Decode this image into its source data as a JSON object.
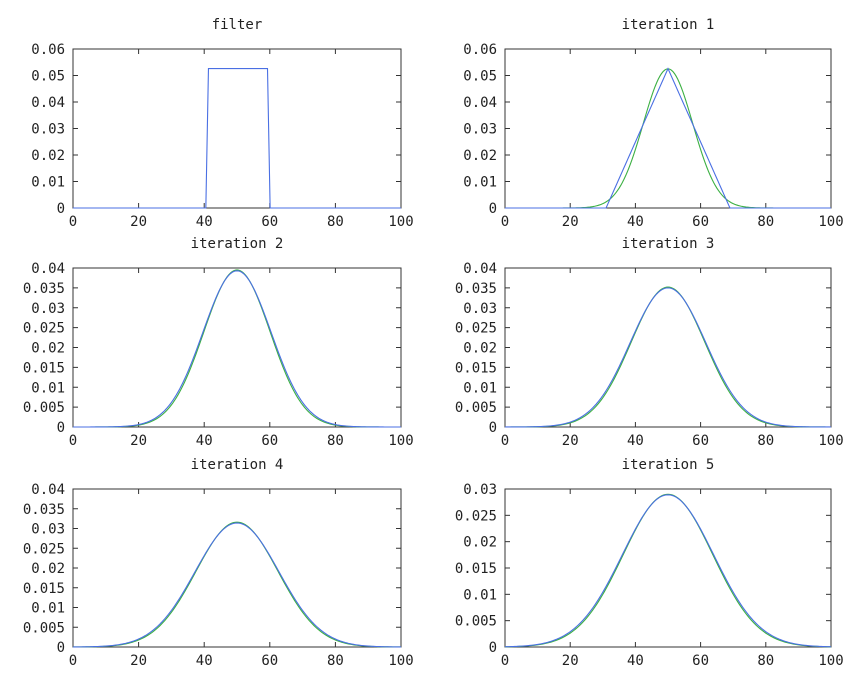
{
  "chart_data": [
    {
      "type": "line",
      "title": "filter",
      "xlim": [
        0,
        100
      ],
      "ylim": [
        0,
        0.06
      ],
      "xticks": [
        "0",
        "20",
        "40",
        "60",
        "80",
        "100"
      ],
      "yticks": [
        "0",
        "0.01",
        "0.02",
        "0.03",
        "0.04",
        "0.05",
        "0.06"
      ],
      "grid": false,
      "series": [
        {
          "color": "#4a6fe3",
          "shape": "box",
          "x": [
            0,
            40.5,
            41.3,
            59.3,
            60.1,
            100
          ],
          "y": [
            0,
            0,
            0.0526,
            0.0526,
            0,
            0
          ]
        }
      ]
    },
    {
      "type": "line",
      "title": "iteration 1",
      "xlim": [
        0,
        100
      ],
      "ylim": [
        0,
        0.06
      ],
      "xticks": [
        "0",
        "20",
        "40",
        "60",
        "80",
        "100"
      ],
      "yticks": [
        "0",
        "0.01",
        "0.02",
        "0.03",
        "0.04",
        "0.05",
        "0.06"
      ],
      "grid": false,
      "series": [
        {
          "color": "#3cb043",
          "shape": "gaussian",
          "mean": 50,
          "sd": 7.6,
          "peak": 0.0525
        },
        {
          "color": "#4a6fe3",
          "shape": "triangle",
          "center": 50,
          "halfwidth": 19,
          "peak": 0.0526
        }
      ]
    },
    {
      "type": "line",
      "title": "iteration 2",
      "xlim": [
        0,
        100
      ],
      "ylim": [
        0,
        0.04
      ],
      "xticks": [
        "0",
        "20",
        "40",
        "60",
        "80",
        "100"
      ],
      "yticks": [
        "0",
        "0.005",
        "0.01",
        "0.015",
        "0.02",
        "0.025",
        "0.03",
        "0.035",
        "0.04"
      ],
      "grid": false,
      "series": [
        {
          "color": "#3cb043",
          "shape": "gaussian",
          "mean": 50,
          "sd": 10.1,
          "peak": 0.0395
        },
        {
          "color": "#4a6fe3",
          "shape": "gaussian",
          "mean": 50,
          "sd": 10.4,
          "peak": 0.0393
        }
      ]
    },
    {
      "type": "line",
      "title": "iteration 3",
      "xlim": [
        0,
        100
      ],
      "ylim": [
        0,
        0.04
      ],
      "xticks": [
        "0",
        "20",
        "40",
        "60",
        "80",
        "100"
      ],
      "yticks": [
        "0",
        "0.005",
        "0.01",
        "0.015",
        "0.02",
        "0.025",
        "0.03",
        "0.035",
        "0.04"
      ],
      "grid": false,
      "series": [
        {
          "color": "#3cb043",
          "shape": "gaussian",
          "mean": 50,
          "sd": 11.3,
          "peak": 0.0352
        },
        {
          "color": "#4a6fe3",
          "shape": "gaussian",
          "mean": 50,
          "sd": 11.6,
          "peak": 0.035
        }
      ]
    },
    {
      "type": "line",
      "title": "iteration 4",
      "xlim": [
        0,
        100
      ],
      "ylim": [
        0,
        0.04
      ],
      "xticks": [
        "0",
        "20",
        "40",
        "60",
        "80",
        "100"
      ],
      "yticks": [
        "0",
        "0.005",
        "0.01",
        "0.015",
        "0.02",
        "0.025",
        "0.03",
        "0.035",
        "0.04"
      ],
      "grid": false,
      "series": [
        {
          "color": "#3cb043",
          "shape": "gaussian",
          "mean": 50,
          "sd": 12.5,
          "peak": 0.0316
        },
        {
          "color": "#4a6fe3",
          "shape": "gaussian",
          "mean": 50,
          "sd": 12.8,
          "peak": 0.0314
        }
      ]
    },
    {
      "type": "line",
      "title": "iteration 5",
      "xlim": [
        0,
        100
      ],
      "ylim": [
        0,
        0.03
      ],
      "xticks": [
        "0",
        "20",
        "40",
        "60",
        "80",
        "100"
      ],
      "yticks": [
        "0",
        "0.005",
        "0.01",
        "0.015",
        "0.02",
        "0.025",
        "0.03"
      ],
      "grid": false,
      "series": [
        {
          "color": "#3cb043",
          "shape": "gaussian",
          "mean": 50,
          "sd": 13.7,
          "peak": 0.029
        },
        {
          "color": "#4a6fe3",
          "shape": "gaussian",
          "mean": 50,
          "sd": 14.0,
          "peak": 0.0289
        }
      ]
    }
  ]
}
